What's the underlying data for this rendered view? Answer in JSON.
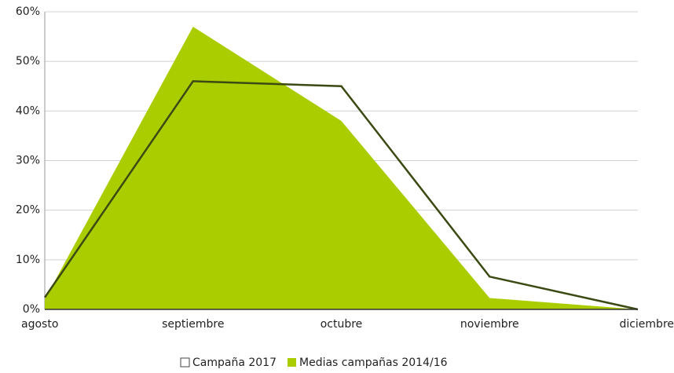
{
  "chart_data": {
    "type": "area",
    "categories": [
      "agosto",
      "septiembre",
      "octubre",
      "noviembre",
      "diciembre"
    ],
    "series": [
      {
        "name": "Campaña 2017",
        "type": "line",
        "color": "#3b4a12",
        "values": [
          2.4,
          46,
          45,
          6.6,
          0
        ]
      },
      {
        "name": "Medias campañas 2014/16",
        "type": "area",
        "color": "#aacd00",
        "values": [
          2,
          57,
          38,
          2.3,
          0
        ]
      }
    ],
    "ylim": [
      0,
      60
    ],
    "yticks": [
      {
        "value": 0,
        "label": "0%"
      },
      {
        "value": 10,
        "label": "10%"
      },
      {
        "value": 20,
        "label": "20%"
      },
      {
        "value": 30,
        "label": "30%"
      },
      {
        "value": 40,
        "label": "40%"
      },
      {
        "value": 50,
        "label": "50%"
      },
      {
        "value": 60,
        "label": "60%"
      }
    ],
    "grid": true,
    "legend": "bottom"
  }
}
